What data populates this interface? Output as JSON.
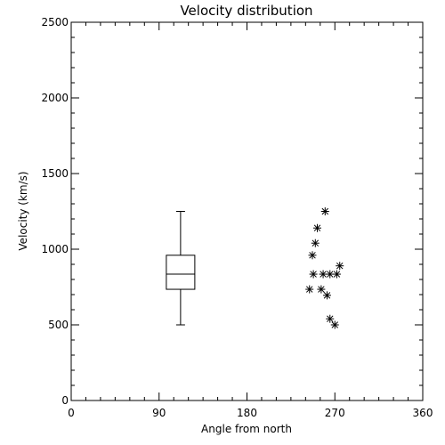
{
  "chart_data": {
    "type": "scatter",
    "title": "Velocity distribution",
    "xlabel": "Angle from north",
    "ylabel": "Velocity (km/s)",
    "xlim": [
      0,
      360
    ],
    "ylim": [
      0,
      2500
    ],
    "x_ticks": [
      0,
      90,
      180,
      270,
      360
    ],
    "x_tick_labels": [
      "0",
      "90",
      "180",
      "270",
      "360"
    ],
    "y_ticks": [
      0,
      500,
      1000,
      1500,
      2000,
      2500
    ],
    "y_tick_labels": [
      "0",
      "500",
      "1000",
      "1500",
      "2000",
      "2500"
    ],
    "grid": false,
    "boxplot": {
      "x": 112,
      "min": 500,
      "q1": 735,
      "median": 835,
      "q3": 960,
      "max": 1250
    },
    "points": [
      {
        "x": 260,
        "y": 1250
      },
      {
        "x": 252,
        "y": 1140
      },
      {
        "x": 250,
        "y": 1040
      },
      {
        "x": 247,
        "y": 960
      },
      {
        "x": 275,
        "y": 890
      },
      {
        "x": 248,
        "y": 835
      },
      {
        "x": 258,
        "y": 835
      },
      {
        "x": 265,
        "y": 835
      },
      {
        "x": 272,
        "y": 835
      },
      {
        "x": 244,
        "y": 735
      },
      {
        "x": 256,
        "y": 735
      },
      {
        "x": 262,
        "y": 695
      },
      {
        "x": 265,
        "y": 540
      },
      {
        "x": 270,
        "y": 500
      }
    ]
  }
}
